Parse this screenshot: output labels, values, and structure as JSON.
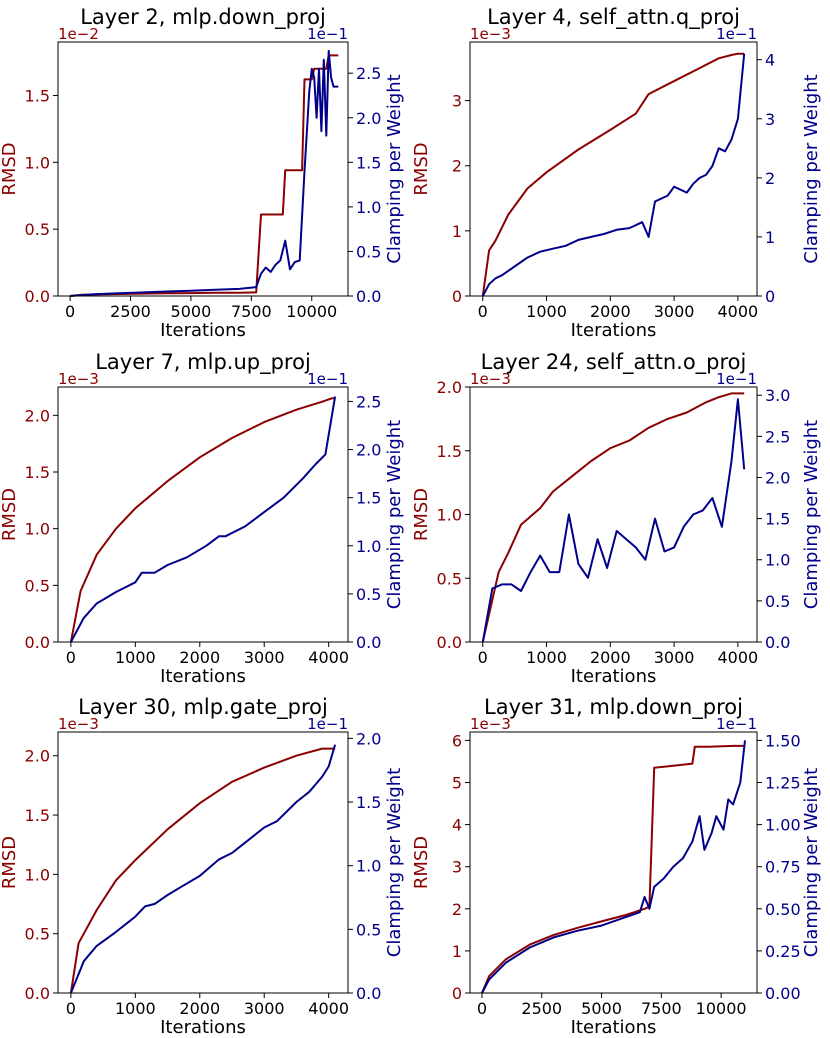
{
  "colors": {
    "rmsd": "#8b0000",
    "clamp": "#00008b",
    "axis": "#000000"
  },
  "chart_data": [
    {
      "type": "line",
      "title": "Layer 2, mlp.down_proj",
      "xlabel": "Iterations",
      "ylabel_left": "RMSD",
      "ylabel_right": "Clamping per Weight",
      "left_scale": "1e−2",
      "right_scale": "1e−1",
      "xlim": [
        -500,
        11500
      ],
      "ylim_left": [
        0,
        1.9
      ],
      "ylim_right": [
        0,
        2.85
      ],
      "xticks": [
        0,
        2500,
        5000,
        7500,
        10000
      ],
      "xtick_labels": [
        "0",
        "2500",
        "5000",
        "7500",
        "10000"
      ],
      "yticks_left": [
        0,
        0.5,
        1.0,
        1.5
      ],
      "ytick_labels_left": [
        "0.0",
        "0.5",
        "1.0",
        "1.5"
      ],
      "yticks_right": [
        0,
        0.5,
        1.0,
        1.5,
        2.0,
        2.5
      ],
      "ytick_labels_right": [
        "0.0",
        "0.5",
        "1.0",
        "1.5",
        "2.0",
        "2.5"
      ],
      "series": [
        {
          "name": "RMSD",
          "axis": "left",
          "x": [
            0,
            500,
            1000,
            2000,
            3000,
            4000,
            5000,
            6000,
            7000,
            7700,
            7900,
            8000,
            8800,
            8900,
            9600,
            9700,
            10000,
            10100,
            10600,
            10700,
            11100
          ],
          "y": [
            0,
            0.01,
            0.012,
            0.015,
            0.018,
            0.02,
            0.022,
            0.024,
            0.025,
            0.027,
            0.61,
            0.61,
            0.61,
            0.94,
            0.94,
            1.62,
            1.62,
            1.7,
            1.7,
            1.8,
            1.8
          ]
        },
        {
          "name": "Clamping per Weight",
          "axis": "right",
          "x": [
            0,
            1000,
            2000,
            3000,
            4000,
            5000,
            6000,
            7000,
            7700,
            7900,
            8100,
            8300,
            8500,
            8700,
            8900,
            9100,
            9300,
            9500,
            9700,
            9900,
            10000,
            10100,
            10200,
            10300,
            10400,
            10500,
            10600,
            10700,
            10800,
            10900,
            11000,
            11100
          ],
          "y": [
            0,
            0.02,
            0.03,
            0.04,
            0.05,
            0.06,
            0.07,
            0.08,
            0.1,
            0.25,
            0.32,
            0.27,
            0.35,
            0.4,
            0.62,
            0.3,
            0.38,
            0.4,
            1.4,
            2.3,
            2.55,
            2.45,
            2.0,
            2.55,
            1.85,
            2.65,
            1.8,
            2.75,
            2.45,
            2.35,
            2.35,
            2.35
          ]
        }
      ]
    },
    {
      "type": "line",
      "title": "Layer 4, self_attn.q_proj",
      "xlabel": "Iterations",
      "ylabel_left": "RMSD",
      "ylabel_right": "Clamping per Weight",
      "left_scale": "1e−3",
      "right_scale": "1e−1",
      "xlim": [
        -200,
        4300
      ],
      "ylim_left": [
        0,
        3.9
      ],
      "ylim_right": [
        0,
        4.3
      ],
      "xticks": [
        0,
        1000,
        2000,
        3000,
        4000
      ],
      "xtick_labels": [
        "0",
        "1000",
        "2000",
        "3000",
        "4000"
      ],
      "yticks_left": [
        0,
        1,
        2,
        3
      ],
      "ytick_labels_left": [
        "0",
        "1",
        "2",
        "3"
      ],
      "yticks_right": [
        0,
        1,
        2,
        3,
        4
      ],
      "ytick_labels_right": [
        "0",
        "1",
        "2",
        "3",
        "4"
      ],
      "series": [
        {
          "name": "RMSD",
          "axis": "left",
          "x": [
            0,
            100,
            200,
            400,
            700,
            1000,
            1500,
            2000,
            2400,
            2600,
            2900,
            3100,
            3400,
            3700,
            3900,
            4000,
            4100
          ],
          "y": [
            0,
            0.7,
            0.85,
            1.25,
            1.65,
            1.9,
            2.25,
            2.55,
            2.8,
            3.1,
            3.25,
            3.35,
            3.5,
            3.65,
            3.7,
            3.72,
            3.72
          ]
        },
        {
          "name": "Clamping per Weight",
          "axis": "right",
          "x": [
            0,
            100,
            200,
            300,
            500,
            700,
            900,
            1100,
            1300,
            1500,
            1700,
            1900,
            2100,
            2300,
            2500,
            2600,
            2700,
            2900,
            3000,
            3200,
            3300,
            3400,
            3500,
            3600,
            3700,
            3800,
            3900,
            4000,
            4100
          ],
          "y": [
            0,
            0.2,
            0.3,
            0.35,
            0.5,
            0.65,
            0.75,
            0.8,
            0.85,
            0.95,
            1.0,
            1.05,
            1.12,
            1.15,
            1.25,
            1.0,
            1.6,
            1.7,
            1.85,
            1.75,
            1.9,
            2.0,
            2.05,
            2.2,
            2.5,
            2.45,
            2.65,
            3.0,
            4.1
          ]
        }
      ]
    },
    {
      "type": "line",
      "title": "Layer 7, mlp.up_proj",
      "xlabel": "Iterations",
      "ylabel_left": "RMSD",
      "ylabel_right": "Clamping per Weight",
      "left_scale": "1e−3",
      "right_scale": "1e−1",
      "xlim": [
        -200,
        4300
      ],
      "ylim_left": [
        0,
        2.25
      ],
      "ylim_right": [
        0,
        2.65
      ],
      "xticks": [
        0,
        1000,
        2000,
        3000,
        4000
      ],
      "xtick_labels": [
        "0",
        "1000",
        "2000",
        "3000",
        "4000"
      ],
      "yticks_left": [
        0,
        0.5,
        1.0,
        1.5,
        2.0
      ],
      "ytick_labels_left": [
        "0.0",
        "0.5",
        "1.0",
        "1.5",
        "2.0"
      ],
      "yticks_right": [
        0,
        0.5,
        1.0,
        1.5,
        2.0,
        2.5
      ],
      "ytick_labels_right": [
        "0.0",
        "0.5",
        "1.0",
        "1.5",
        "2.0",
        "2.5"
      ],
      "series": [
        {
          "name": "RMSD",
          "axis": "left",
          "x": [
            0,
            150,
            400,
            700,
            1000,
            1500,
            2000,
            2500,
            3000,
            3500,
            3900,
            4050,
            4100
          ],
          "y": [
            0,
            0.45,
            0.77,
            1.0,
            1.18,
            1.42,
            1.63,
            1.8,
            1.94,
            2.05,
            2.12,
            2.15,
            2.15
          ]
        },
        {
          "name": "Clamping per Weight",
          "axis": "right",
          "x": [
            0,
            200,
            400,
            700,
            1000,
            1100,
            1200,
            1300,
            1500,
            1800,
            2100,
            2300,
            2400,
            2700,
            3000,
            3300,
            3600,
            3800,
            3950,
            4100
          ],
          "y": [
            0,
            0.25,
            0.4,
            0.52,
            0.62,
            0.72,
            0.72,
            0.72,
            0.8,
            0.88,
            1.0,
            1.1,
            1.1,
            1.2,
            1.35,
            1.5,
            1.7,
            1.85,
            1.95,
            2.55
          ]
        }
      ]
    },
    {
      "type": "line",
      "title": "Layer 24, self_attn.o_proj",
      "xlabel": "Iterations",
      "ylabel_left": "RMSD",
      "ylabel_right": "Clamping per Weight",
      "left_scale": "1e−3",
      "right_scale": "1e−1",
      "xlim": [
        -200,
        4300
      ],
      "ylim_left": [
        0,
        2.0
      ],
      "ylim_right": [
        0,
        3.1
      ],
      "xticks": [
        0,
        1000,
        2000,
        3000,
        4000
      ],
      "xtick_labels": [
        "0",
        "1000",
        "2000",
        "3000",
        "4000"
      ],
      "yticks_left": [
        0,
        0.5,
        1.0,
        1.5,
        2.0
      ],
      "ytick_labels_left": [
        "0.0",
        "0.5",
        "1.0",
        "1.5",
        "2.0"
      ],
      "yticks_right": [
        0,
        0.5,
        1.0,
        1.5,
        2.0,
        2.5,
        3.0
      ],
      "ytick_labels_right": [
        "0.0",
        "0.5",
        "1.0",
        "1.5",
        "2.0",
        "2.5",
        "3.0"
      ],
      "series": [
        {
          "name": "RMSD",
          "axis": "left",
          "x": [
            0,
            250,
            400,
            600,
            900,
            1100,
            1400,
            1700,
            2000,
            2300,
            2600,
            2900,
            3200,
            3500,
            3700,
            3900,
            4100
          ],
          "y": [
            0,
            0.55,
            0.7,
            0.92,
            1.05,
            1.18,
            1.3,
            1.42,
            1.52,
            1.58,
            1.68,
            1.75,
            1.8,
            1.88,
            1.92,
            1.95,
            1.95
          ]
        },
        {
          "name": "Clamping per Weight",
          "axis": "right",
          "x": [
            0,
            150,
            300,
            450,
            600,
            750,
            900,
            1050,
            1200,
            1350,
            1500,
            1650,
            1800,
            1950,
            2100,
            2250,
            2400,
            2550,
            2700,
            2850,
            3000,
            3150,
            3300,
            3450,
            3600,
            3750,
            3900,
            4000,
            4100
          ],
          "y": [
            0,
            0.65,
            0.7,
            0.7,
            0.62,
            0.85,
            1.05,
            0.85,
            0.85,
            1.55,
            0.95,
            0.78,
            1.25,
            0.9,
            1.35,
            1.25,
            1.15,
            1.0,
            1.5,
            1.1,
            1.15,
            1.4,
            1.55,
            1.6,
            1.75,
            1.4,
            2.2,
            2.95,
            2.1
          ]
        }
      ]
    },
    {
      "type": "line",
      "title": "Layer 30, mlp.gate_proj",
      "xlabel": "Iterations",
      "ylabel_left": "RMSD",
      "ylabel_right": "Clamping per Weight",
      "left_scale": "1e−3",
      "right_scale": "1e−1",
      "xlim": [
        -200,
        4300
      ],
      "ylim_left": [
        0,
        2.2
      ],
      "ylim_right": [
        0,
        2.05
      ],
      "xticks": [
        0,
        1000,
        2000,
        3000,
        4000
      ],
      "xtick_labels": [
        "0",
        "1000",
        "2000",
        "3000",
        "4000"
      ],
      "yticks_left": [
        0,
        0.5,
        1.0,
        1.5,
        2.0
      ],
      "ytick_labels_left": [
        "0.0",
        "0.5",
        "1.0",
        "1.5",
        "2.0"
      ],
      "yticks_right": [
        0,
        0.5,
        1.0,
        1.5,
        2.0
      ],
      "ytick_labels_right": [
        "0.0",
        "0.5",
        "1.0",
        "1.5",
        "2.0"
      ],
      "series": [
        {
          "name": "RMSD",
          "axis": "left",
          "x": [
            0,
            120,
            400,
            700,
            1000,
            1500,
            2000,
            2500,
            3000,
            3500,
            3900,
            4100
          ],
          "y": [
            0,
            0.42,
            0.7,
            0.95,
            1.12,
            1.38,
            1.6,
            1.78,
            1.9,
            2.0,
            2.06,
            2.06
          ]
        },
        {
          "name": "Clamping per Weight",
          "axis": "right",
          "x": [
            0,
            200,
            400,
            700,
            1000,
            1150,
            1300,
            1500,
            1700,
            2000,
            2300,
            2500,
            2700,
            3000,
            3200,
            3500,
            3700,
            3900,
            4000,
            4100
          ],
          "y": [
            0,
            0.25,
            0.37,
            0.48,
            0.6,
            0.68,
            0.7,
            0.77,
            0.83,
            0.92,
            1.05,
            1.1,
            1.18,
            1.3,
            1.35,
            1.5,
            1.58,
            1.7,
            1.78,
            1.95
          ]
        }
      ]
    },
    {
      "type": "line",
      "title": "Layer 31, mlp.down_proj",
      "xlabel": "Iterations",
      "ylabel_left": "RMSD",
      "ylabel_right": "Clamping per Weight",
      "left_scale": "1e−3",
      "right_scale": "1e−1",
      "xlim": [
        -500,
        11500
      ],
      "ylim_left": [
        0,
        6.2
      ],
      "ylim_right": [
        0,
        1.55
      ],
      "xticks": [
        0,
        2500,
        5000,
        7500,
        10000
      ],
      "xtick_labels": [
        "0",
        "2500",
        "5000",
        "7500",
        "10000"
      ],
      "yticks_left": [
        0,
        1,
        2,
        3,
        4,
        5,
        6
      ],
      "ytick_labels_left": [
        "0",
        "1",
        "2",
        "3",
        "4",
        "5",
        "6"
      ],
      "yticks_right": [
        0,
        0.25,
        0.5,
        0.75,
        1.0,
        1.25,
        1.5
      ],
      "ytick_labels_right": [
        "0.00",
        "0.25",
        "0.50",
        "0.75",
        "1.00",
        "1.25",
        "1.50"
      ],
      "series": [
        {
          "name": "RMSD",
          "axis": "left",
          "x": [
            0,
            300,
            1000,
            2000,
            3000,
            4000,
            5000,
            6000,
            6800,
            7000,
            7200,
            8000,
            8800,
            8900,
            9500,
            10500,
            11000
          ],
          "y": [
            0,
            0.4,
            0.8,
            1.15,
            1.38,
            1.55,
            1.7,
            1.85,
            2.0,
            2.05,
            5.35,
            5.4,
            5.45,
            5.85,
            5.85,
            5.87,
            5.87
          ]
        },
        {
          "name": "Clamping per Weight",
          "axis": "right",
          "x": [
            0,
            300,
            1000,
            2000,
            3000,
            4000,
            5000,
            6000,
            6600,
            6800,
            7000,
            7200,
            7600,
            8000,
            8400,
            8800,
            9100,
            9300,
            9600,
            9800,
            10100,
            10300,
            10500,
            10800,
            11000
          ],
          "y": [
            0,
            0.08,
            0.18,
            0.27,
            0.33,
            0.37,
            0.4,
            0.45,
            0.48,
            0.57,
            0.5,
            0.63,
            0.68,
            0.75,
            0.8,
            0.9,
            1.05,
            0.85,
            0.95,
            1.05,
            0.97,
            1.15,
            1.12,
            1.25,
            1.5
          ]
        }
      ]
    }
  ]
}
